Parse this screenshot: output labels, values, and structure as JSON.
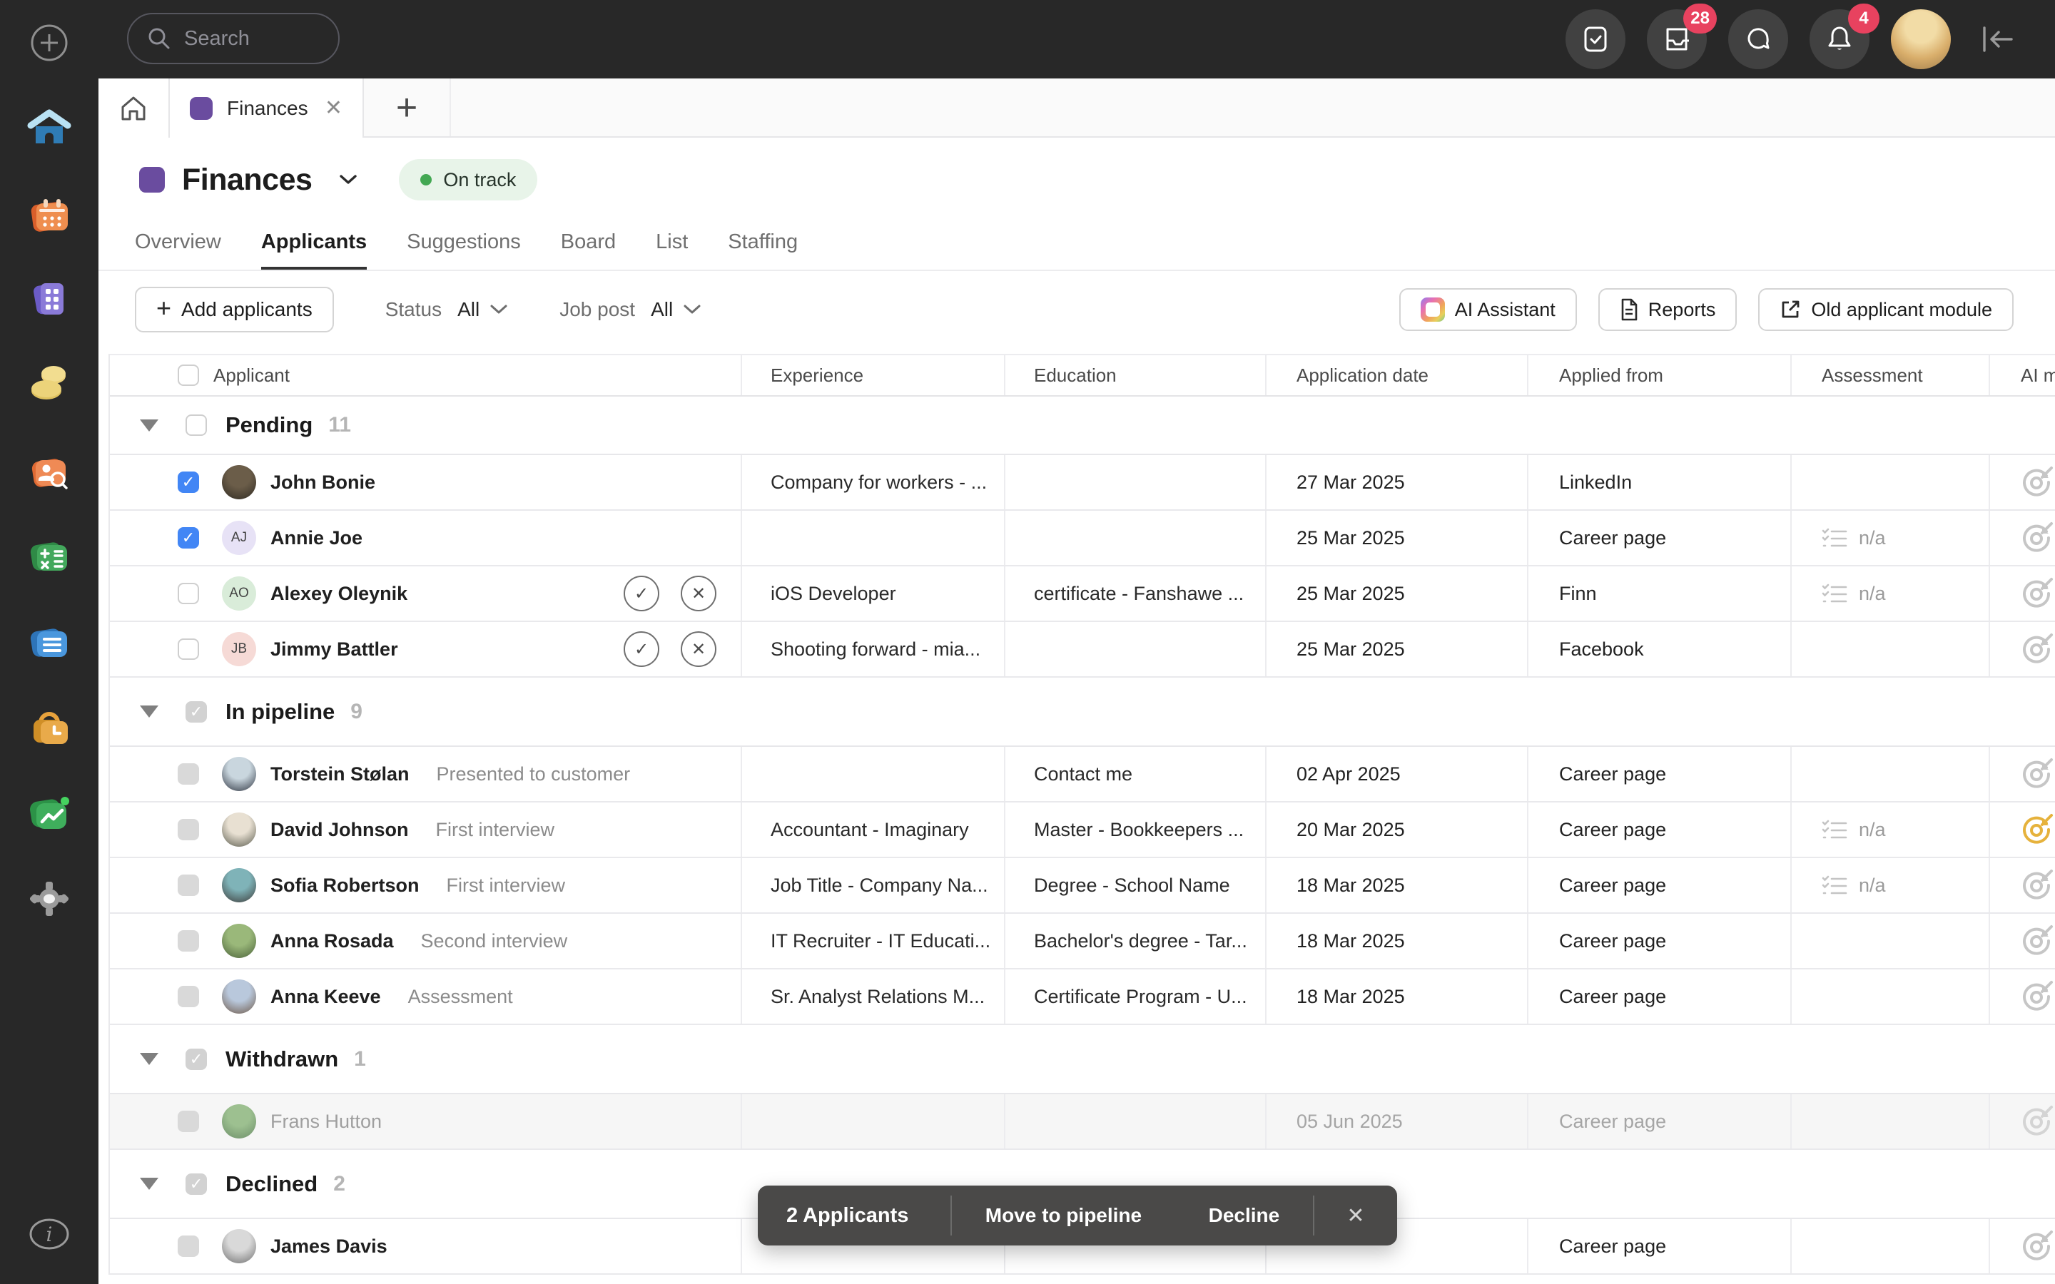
{
  "topbar": {
    "search_placeholder": "Search",
    "inbox_badge": "28",
    "notification_badge": "4"
  },
  "tabstrip": {
    "active_tab_label": "Finances"
  },
  "header": {
    "title": "Finances",
    "status_label": "On track",
    "status_color": "#43a853",
    "accent_color": "#6a4c9f"
  },
  "nav": {
    "tabs": [
      {
        "label": "Overview",
        "active": false
      },
      {
        "label": "Applicants",
        "active": true
      },
      {
        "label": "Suggestions",
        "active": false
      },
      {
        "label": "Board",
        "active": false
      },
      {
        "label": "List",
        "active": false
      },
      {
        "label": "Staffing",
        "active": false
      }
    ]
  },
  "toolbar": {
    "add_label": "Add applicants",
    "filters": [
      {
        "label": "Status",
        "value": "All"
      },
      {
        "label": "Job post",
        "value": "All"
      }
    ],
    "right_buttons": [
      {
        "label": "AI Assistant",
        "icon": "ai-gradient-icon"
      },
      {
        "label": "Reports",
        "icon": "document-icon"
      },
      {
        "label": "Old applicant module",
        "icon": "external-link-icon"
      }
    ]
  },
  "table": {
    "columns": [
      "Applicant",
      "Experience",
      "Education",
      "Application date",
      "Applied from",
      "Assessment",
      "AI m"
    ],
    "groups": [
      {
        "title": "Pending",
        "count": "11",
        "checkbox": "unchecked",
        "rows": [
          {
            "name": "John Bonie",
            "stage": "",
            "checkbox": "checked",
            "actions": false,
            "avatar": {
              "kind": "photo",
              "colors": [
                "#6b5d49",
                "#2f2a22"
              ]
            },
            "experience": "Company for workers - ...",
            "education": "",
            "date": "27 Mar 2025",
            "applied_from": "LinkedIn",
            "assessment": "",
            "ai": "gray",
            "muted": false
          },
          {
            "name": "Annie Joe",
            "stage": "",
            "checkbox": "checked",
            "actions": false,
            "avatar": {
              "kind": "initials",
              "initials": "AJ",
              "bg": "#e7e2f6"
            },
            "experience": "",
            "education": "",
            "date": "25 Mar 2025",
            "applied_from": "Career page",
            "assessment": "n/a",
            "ai": "gray",
            "muted": false
          },
          {
            "name": "Alexey Oleynik",
            "stage": "",
            "checkbox": "unchecked",
            "actions": true,
            "avatar": {
              "kind": "initials",
              "initials": "AO",
              "bg": "#d9ecd9"
            },
            "experience": "iOS Developer",
            "education": "certificate - Fanshawe ...",
            "date": "25 Mar 2025",
            "applied_from": "Finn",
            "assessment": "n/a",
            "ai": "gray",
            "muted": false
          },
          {
            "name": "Jimmy Battler",
            "stage": "",
            "checkbox": "unchecked",
            "actions": true,
            "avatar": {
              "kind": "initials",
              "initials": "JB",
              "bg": "#f6dad6"
            },
            "experience": "Shooting forward - mia...",
            "education": "",
            "date": "25 Mar 2025",
            "applied_from": "Facebook",
            "assessment": "",
            "ai": "gray",
            "muted": false
          }
        ]
      },
      {
        "title": "In pipeline",
        "count": "9",
        "checkbox": "gray-check",
        "rows": [
          {
            "name": "Torstein Stølan",
            "stage": "Presented to customer",
            "checkbox": "disabled",
            "actions": false,
            "avatar": {
              "kind": "photo",
              "colors": [
                "#c9d6de",
                "#2e3440"
              ]
            },
            "experience": "",
            "education": "Contact me",
            "date": "02 Apr 2025",
            "applied_from": "Career page",
            "assessment": "",
            "ai": "gray",
            "muted": false
          },
          {
            "name": "David Johnson",
            "stage": "First interview",
            "checkbox": "disabled",
            "actions": false,
            "avatar": {
              "kind": "photo",
              "colors": [
                "#e8e0d2",
                "#5a5b4e"
              ]
            },
            "experience": "Accountant - Imaginary",
            "education": "Master - Bookkeepers ...",
            "date": "20 Mar 2025",
            "applied_from": "Career page",
            "assessment": "n/a",
            "ai": "yellow",
            "muted": false
          },
          {
            "name": "Sofia Robertson",
            "stage": "First interview",
            "checkbox": "disabled",
            "actions": false,
            "avatar": {
              "kind": "photo",
              "colors": [
                "#7fb3b8",
                "#3c3a38"
              ]
            },
            "experience": "Job Title - Company Na...",
            "education": "Degree - School Name",
            "date": "18 Mar 2025",
            "applied_from": "Career page",
            "assessment": "n/a",
            "ai": "gray",
            "muted": false
          },
          {
            "name": "Anna Rosada",
            "stage": "Second interview",
            "checkbox": "disabled",
            "actions": false,
            "avatar": {
              "kind": "photo",
              "colors": [
                "#9ab87a",
                "#4a6139"
              ]
            },
            "experience": "IT Recruiter - IT Educati...",
            "education": "Bachelor's degree - Tar...",
            "date": "18 Mar 2025",
            "applied_from": "Career page",
            "assessment": "",
            "ai": "gray",
            "muted": false
          },
          {
            "name": "Anna Keeve",
            "stage": "Assessment",
            "checkbox": "disabled",
            "actions": false,
            "avatar": {
              "kind": "photo",
              "colors": [
                "#b9c8dc",
                "#6e5a4a"
              ]
            },
            "experience": "Sr. Analyst Relations M...",
            "education": "Certificate Program - U...",
            "date": "18 Mar 2025",
            "applied_from": "Career page",
            "assessment": "",
            "ai": "gray",
            "muted": false
          }
        ]
      },
      {
        "title": "Withdrawn",
        "count": "1",
        "checkbox": "gray-check",
        "rows": [
          {
            "name": "Frans Hutton",
            "stage": "",
            "checkbox": "disabled",
            "actions": false,
            "avatar": {
              "kind": "photo",
              "colors": [
                "#7fae6e",
                "#3e6b3a"
              ]
            },
            "experience": "",
            "education": "",
            "date": "05 Jun 2025",
            "applied_from": "Career page",
            "assessment": "",
            "ai": "gray",
            "muted": true
          }
        ]
      },
      {
        "title": "Declined",
        "count": "2",
        "checkbox": "gray-check",
        "rows": [
          {
            "name": "James Davis",
            "stage": "",
            "checkbox": "disabled",
            "actions": false,
            "avatar": {
              "kind": "photo",
              "colors": [
                "#d9d9d9",
                "#6f6f6f"
              ]
            },
            "experience": "",
            "education": "",
            "date": "",
            "applied_from": "Career page",
            "assessment": "",
            "ai": "gray",
            "muted": false
          }
        ]
      }
    ]
  },
  "action_bar": {
    "count_label": "2 Applicants",
    "move_label": "Move to pipeline",
    "decline_label": "Decline"
  }
}
